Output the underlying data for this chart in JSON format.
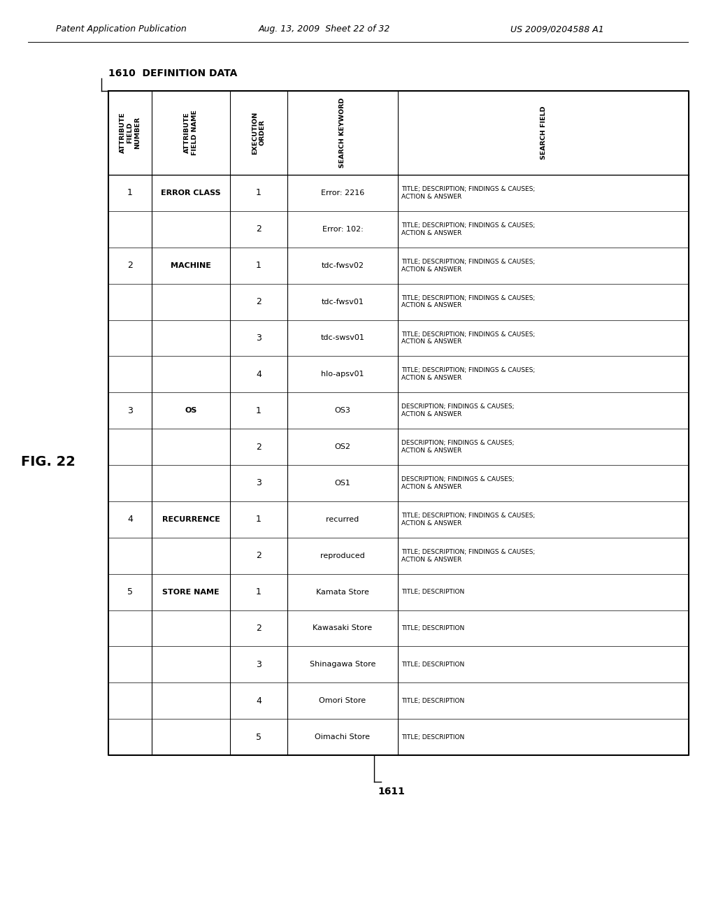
{
  "header_line1": "Patent Application Publication",
  "header_line2": "Aug. 13, 2009  Sheet 22 of 32",
  "header_line3": "US 2009/0204588 A1",
  "fig_label": "FIG. 22",
  "table_title": "DEFINITION DATA",
  "label_1610": "1610",
  "table_label": "1611",
  "col_headers": [
    "ATTRIBUTE\nFIELD\nNUMBER",
    "ATTRIBUTE\nFIELD NAME",
    "EXECUTION\nORDER",
    "SEARCH KEYWORD",
    "SEARCH FIELD"
  ],
  "rows": [
    {
      "attr_num": "1",
      "attr_name": "ERROR CLASS",
      "exec_order": "1",
      "keyword": "Error: 2216",
      "search_field": "TITLE; DESCRIPTION; FINDINGS & CAUSES;\nACTION & ANSWER"
    },
    {
      "attr_num": "",
      "attr_name": "",
      "exec_order": "2",
      "keyword": "Error: 102:",
      "search_field": "TITLE; DESCRIPTION; FINDINGS & CAUSES;\nACTION & ANSWER"
    },
    {
      "attr_num": "2",
      "attr_name": "MACHINE",
      "exec_order": "1",
      "keyword": "tdc-fwsv02",
      "search_field": "TITLE; DESCRIPTION; FINDINGS & CAUSES;\nACTION & ANSWER"
    },
    {
      "attr_num": "",
      "attr_name": "",
      "exec_order": "2",
      "keyword": "tdc-fwsv01",
      "search_field": "TITLE; DESCRIPTION; FINDINGS & CAUSES;\nACTION & ANSWER"
    },
    {
      "attr_num": "",
      "attr_name": "",
      "exec_order": "3",
      "keyword": "tdc-swsv01",
      "search_field": "TITLE; DESCRIPTION; FINDINGS & CAUSES;\nACTION & ANSWER"
    },
    {
      "attr_num": "",
      "attr_name": "",
      "exec_order": "4",
      "keyword": "hlo-apsv01",
      "search_field": "TITLE; DESCRIPTION; FINDINGS & CAUSES;\nACTION & ANSWER"
    },
    {
      "attr_num": "3",
      "attr_name": "OS",
      "exec_order": "1",
      "keyword": "OS3",
      "search_field": "DESCRIPTION; FINDINGS & CAUSES;\nACTION & ANSWER"
    },
    {
      "attr_num": "",
      "attr_name": "",
      "exec_order": "2",
      "keyword": "OS2",
      "search_field": "DESCRIPTION; FINDINGS & CAUSES;\nACTION & ANSWER"
    },
    {
      "attr_num": "",
      "attr_name": "",
      "exec_order": "3",
      "keyword": "OS1",
      "search_field": "DESCRIPTION; FINDINGS & CAUSES;\nACTION & ANSWER"
    },
    {
      "attr_num": "4",
      "attr_name": "RECURRENCE",
      "exec_order": "1",
      "keyword": "recurred",
      "search_field": "TITLE; DESCRIPTION; FINDINGS & CAUSES;\nACTION & ANSWER"
    },
    {
      "attr_num": "",
      "attr_name": "",
      "exec_order": "2",
      "keyword": "reproduced",
      "search_field": "TITLE; DESCRIPTION; FINDINGS & CAUSES;\nACTION & ANSWER"
    },
    {
      "attr_num": "5",
      "attr_name": "STORE NAME",
      "exec_order": "1",
      "keyword": "Kamata Store",
      "search_field": "TITLE; DESCRIPTION"
    },
    {
      "attr_num": "",
      "attr_name": "",
      "exec_order": "2",
      "keyword": "Kawasaki Store",
      "search_field": "TITLE; DESCRIPTION"
    },
    {
      "attr_num": "",
      "attr_name": "",
      "exec_order": "3",
      "keyword": "Shinagawa Store",
      "search_field": "TITLE; DESCRIPTION"
    },
    {
      "attr_num": "",
      "attr_name": "",
      "exec_order": "4",
      "keyword": "Omori Store",
      "search_field": "TITLE; DESCRIPTION"
    },
    {
      "attr_num": "",
      "attr_name": "",
      "exec_order": "5",
      "keyword": "Oimachi Store",
      "search_field": "TITLE; DESCRIPTION"
    }
  ],
  "bg_color": "#ffffff",
  "text_color": "#000000",
  "line_color": "#000000"
}
